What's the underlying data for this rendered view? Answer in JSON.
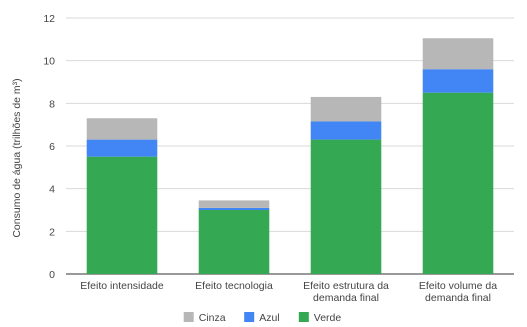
{
  "chart_data": {
    "type": "bar",
    "stacked": true,
    "title": "",
    "xlabel": "",
    "ylabel": "Consumo de água (trilhões de m³)",
    "ylim": [
      0,
      12
    ],
    "yticks": [
      "0",
      "2",
      "4",
      "6",
      "8",
      "10",
      "12"
    ],
    "grid": true,
    "legend_position": "bottom",
    "categories": [
      [
        "Efeito intensidade"
      ],
      [
        "Efeito tecnologia"
      ],
      [
        "Efeito estrutura da",
        "demanda final"
      ],
      [
        "Efeito volume da",
        "demanda final"
      ]
    ],
    "series": [
      {
        "name": "Verde",
        "color": "#34a853",
        "values": [
          5.5,
          3.0,
          6.3,
          8.5
        ]
      },
      {
        "name": "Azul",
        "color": "#4285f4",
        "values": [
          0.8,
          0.1,
          0.85,
          1.1
        ]
      },
      {
        "name": "Cinza",
        "color": "#b7b7b7",
        "values": [
          1.0,
          0.35,
          1.15,
          1.45
        ]
      }
    ],
    "legend_order": [
      "Cinza",
      "Azul",
      "Verde"
    ]
  }
}
